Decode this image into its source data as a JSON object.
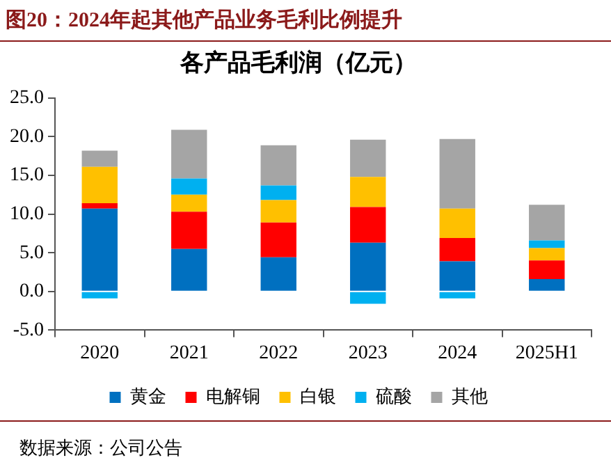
{
  "chart_data": {
    "type": "bar",
    "title": "图20：2024年起其他产品业务毛利比例提升",
    "subtitle": "各产品毛利润（亿元）",
    "categories": [
      "2020",
      "2021",
      "2022",
      "2023",
      "2024",
      "2025H1"
    ],
    "series": [
      {
        "name": "黄金",
        "color": "#0070c0",
        "values": [
          10.7,
          5.5,
          4.4,
          6.3,
          3.9,
          1.6
        ]
      },
      {
        "name": "电解铜",
        "color": "#ff0000",
        "values": [
          0.7,
          4.8,
          4.5,
          4.6,
          3.0,
          2.4
        ]
      },
      {
        "name": "白银",
        "color": "#ffc000",
        "values": [
          4.7,
          2.2,
          2.9,
          3.9,
          3.8,
          1.6
        ]
      },
      {
        "name": "硫酸",
        "color": "#00b0f0",
        "values": [
          -0.9,
          2.1,
          1.9,
          -1.6,
          -0.9,
          1.0
        ]
      },
      {
        "name": "其他",
        "color": "#a5a5a5",
        "values": [
          2.1,
          6.3,
          5.2,
          4.8,
          9.0,
          4.6
        ]
      }
    ],
    "stacked": true,
    "ylim": [
      -5,
      25
    ],
    "yticks": [
      {
        "value": -5,
        "label": "-5.0"
      },
      {
        "value": 0,
        "label": "0.0"
      },
      {
        "value": 5,
        "label": "5.0"
      },
      {
        "value": 10,
        "label": "10.0"
      },
      {
        "value": 15,
        "label": "15.0"
      },
      {
        "value": 20,
        "label": "20.0"
      },
      {
        "value": 25,
        "label": "25.0"
      }
    ],
    "grid": false,
    "legend": "bottom",
    "annotations": [
      "数据来源：公司公告"
    ]
  }
}
